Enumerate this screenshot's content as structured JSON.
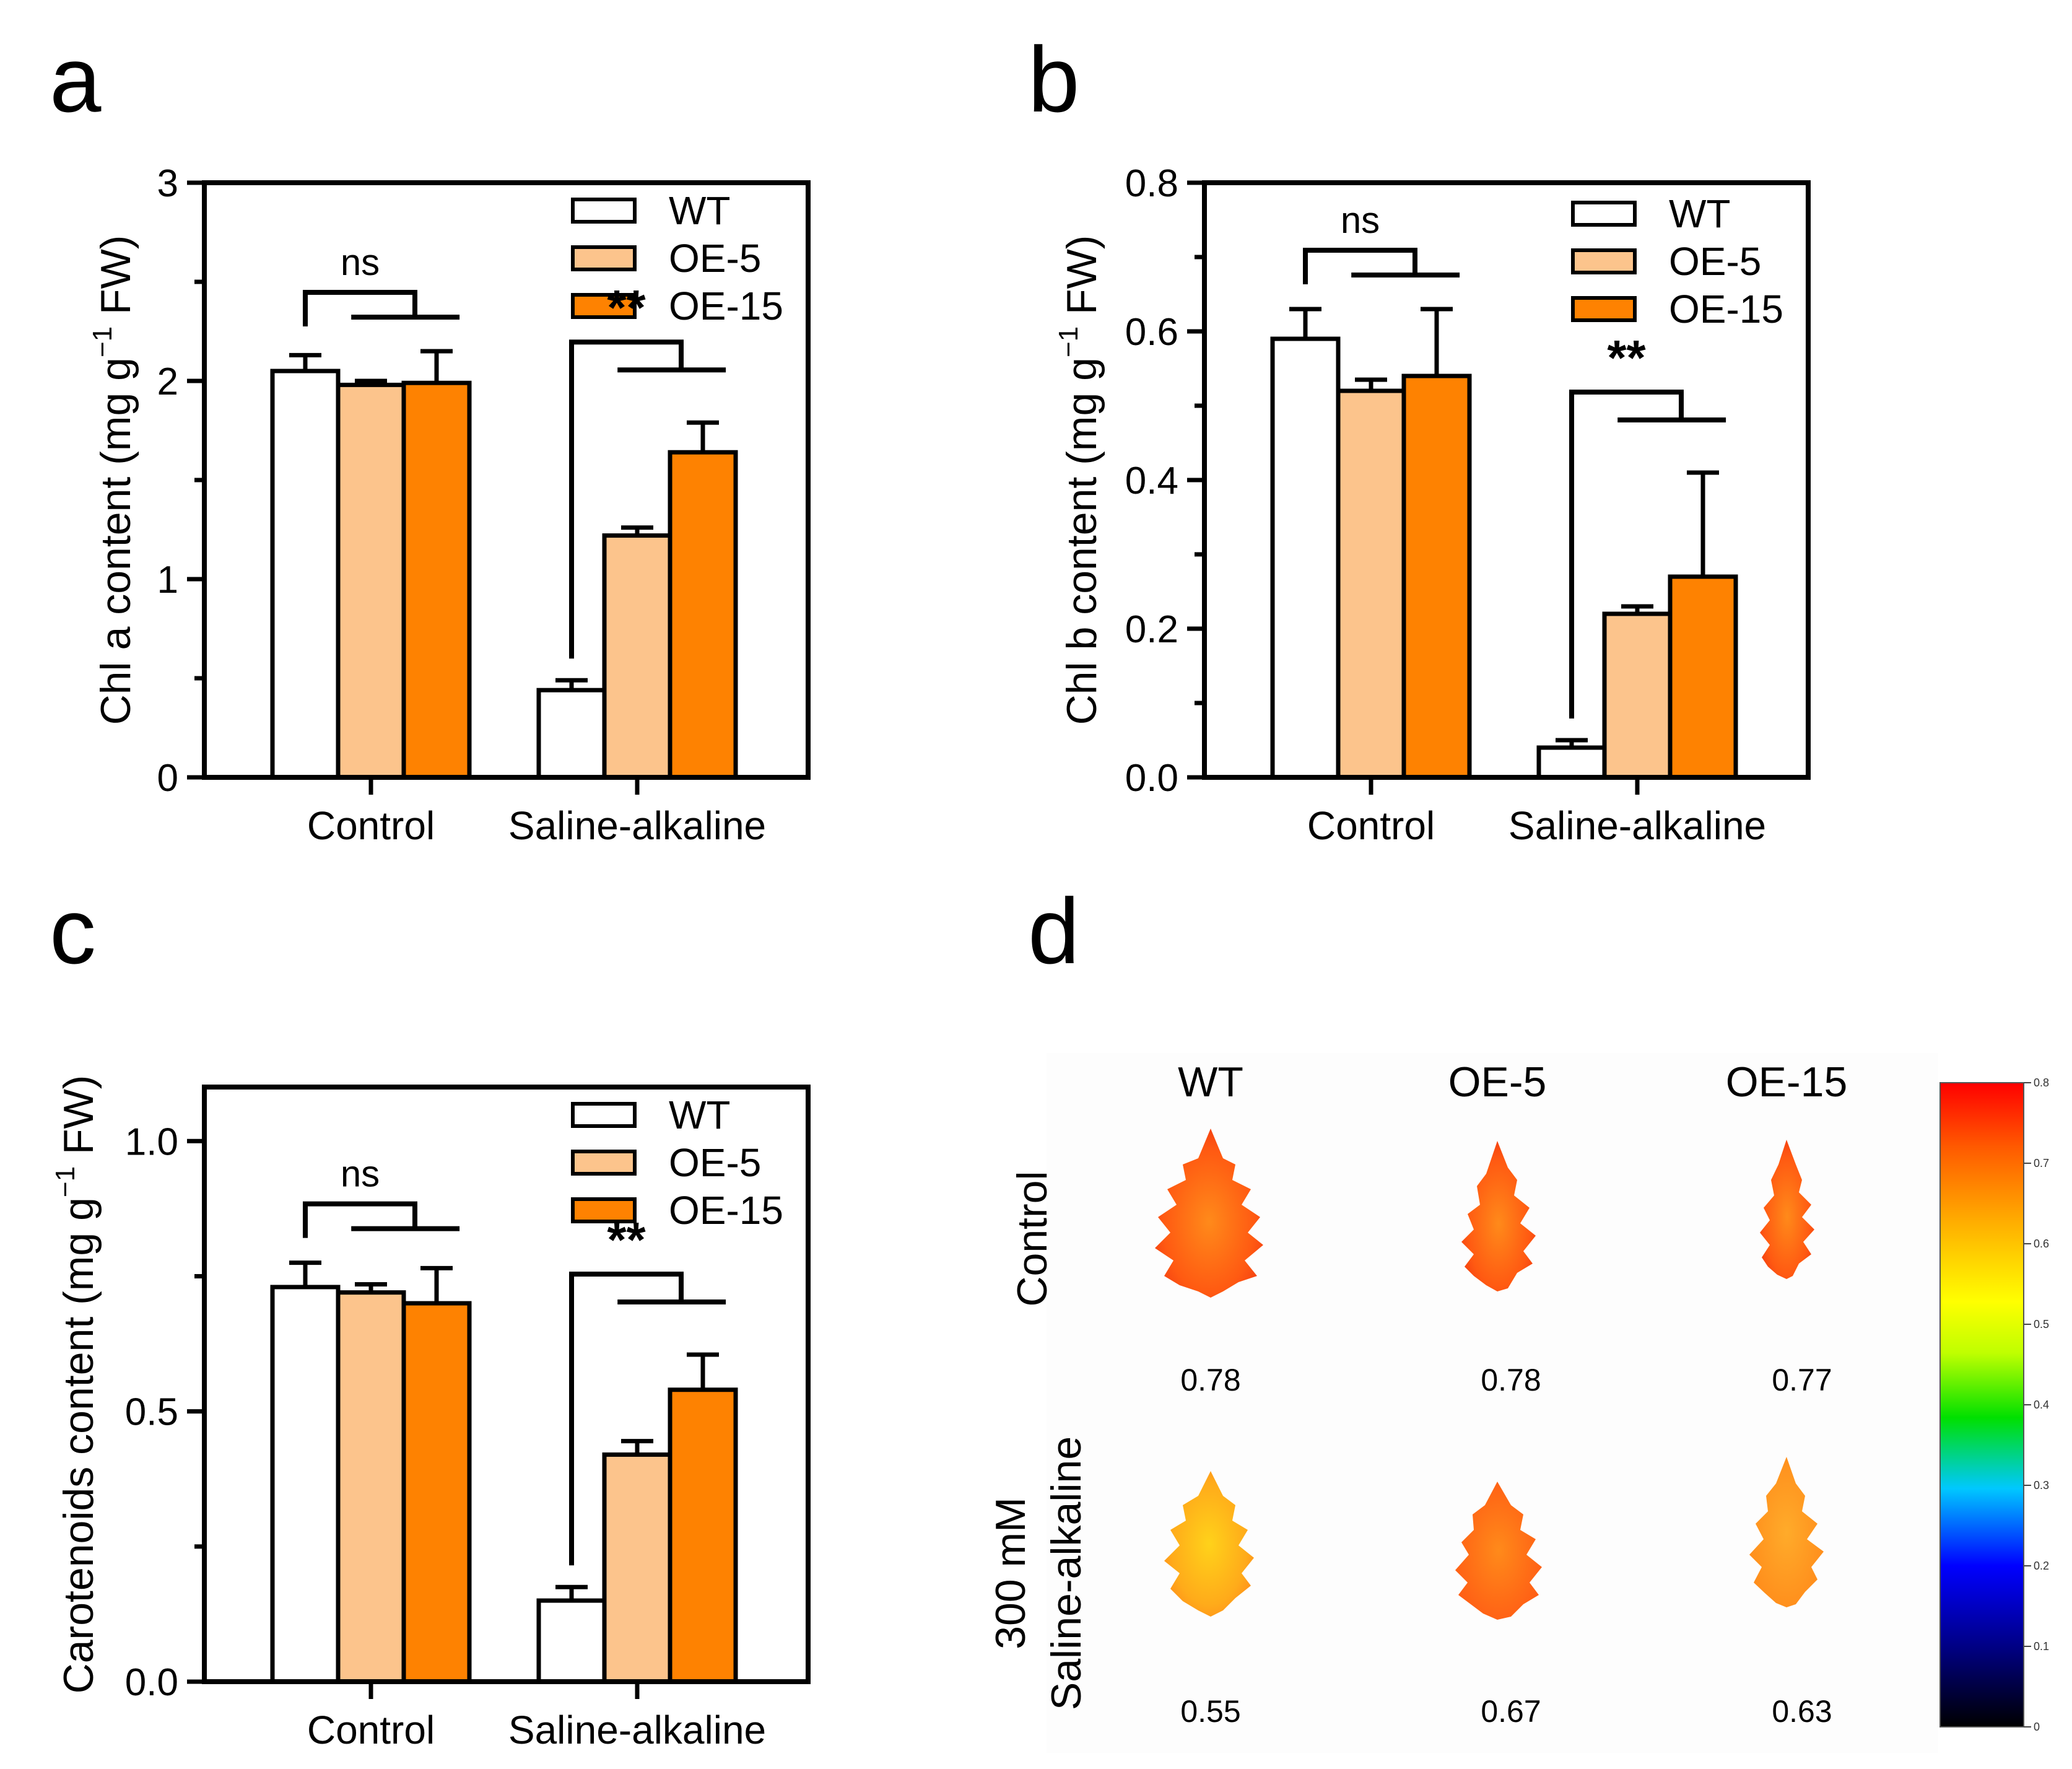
{
  "panels": [
    {
      "letter": "a",
      "chart_data": {
        "type": "bar",
        "ylabel": "Chl a content (mg g",
        "ylabel_sup": "−1",
        "ylabel_tail": " FW)",
        "ylim": [
          0,
          3
        ],
        "yticks": [
          "0",
          "1",
          "2",
          "3"
        ],
        "ytick_values": [
          0,
          1,
          2,
          3
        ],
        "categories": [
          "Control",
          "Saline-alkaline"
        ],
        "series": [
          {
            "name": "WT",
            "values": [
              2.05,
              0.44
            ],
            "errors": [
              0.08,
              0.05
            ]
          },
          {
            "name": "OE-5",
            "values": [
              1.98,
              1.22
            ],
            "errors": [
              0.02,
              0.04
            ]
          },
          {
            "name": "OE-15",
            "values": [
              1.99,
              1.64
            ],
            "errors": [
              0.16,
              0.15
            ]
          }
        ],
        "significance": [
          "ns",
          "**"
        ],
        "legend_position": "top-right"
      }
    },
    {
      "letter": "b",
      "chart_data": {
        "type": "bar",
        "ylabel": "Chl b content (mg g",
        "ylabel_sup": "−1",
        "ylabel_tail": " FW)",
        "ylim": [
          0,
          0.8
        ],
        "yticks": [
          "0.0",
          "0.2",
          "0.4",
          "0.6",
          "0.8"
        ],
        "ytick_values": [
          0,
          0.2,
          0.4,
          0.6,
          0.8
        ],
        "categories": [
          "Control",
          "Saline-alkaline"
        ],
        "series": [
          {
            "name": "WT",
            "values": [
              0.59,
              0.04
            ],
            "errors": [
              0.04,
              0.01
            ]
          },
          {
            "name": "OE-5",
            "values": [
              0.52,
              0.22
            ],
            "errors": [
              0.015,
              0.01
            ]
          },
          {
            "name": "OE-15",
            "values": [
              0.54,
              0.27
            ],
            "errors": [
              0.09,
              0.14
            ]
          }
        ],
        "significance": [
          "ns",
          "**"
        ],
        "legend_position": "top-right"
      }
    },
    {
      "letter": "c",
      "chart_data": {
        "type": "bar",
        "ylabel": "Carotenoids content (mg g",
        "ylabel_sup": "−1",
        "ylabel_tail": " FW)",
        "ylim": [
          0,
          1.1
        ],
        "yticks": [
          "0.0",
          "0.5",
          "1.0"
        ],
        "ytick_values": [
          0,
          0.5,
          1.0
        ],
        "categories": [
          "Control",
          "Saline-alkaline"
        ],
        "series": [
          {
            "name": "WT",
            "values": [
              0.73,
              0.15
            ],
            "errors": [
              0.045,
              0.025
            ]
          },
          {
            "name": "OE-5",
            "values": [
              0.72,
              0.42
            ],
            "errors": [
              0.015,
              0.025
            ]
          },
          {
            "name": "OE-15",
            "values": [
              0.7,
              0.54
            ],
            "errors": [
              0.065,
              0.065
            ]
          }
        ],
        "significance": [
          "ns",
          "**"
        ],
        "legend_position": "top-right"
      }
    }
  ],
  "colors": {
    "WT": "#ffffff",
    "OE-5": "#fcc48c",
    "OE-15": "#fe8201"
  },
  "panel_d": {
    "letter": "d",
    "columns": [
      "WT",
      "OE-5",
      "OE-15"
    ],
    "rows": [
      {
        "label": "Control",
        "values": [
          "0.78",
          "0.78",
          "0.77"
        ]
      },
      {
        "label_line1": "300 mM",
        "label_line2": "Saline-alkaline",
        "values": [
          "0.55",
          "0.67",
          "0.63"
        ]
      }
    ],
    "colorbar_ticks": [
      "0.8",
      "0.7",
      "0.6",
      "0.5",
      "0.4",
      "0.3",
      "0.2",
      "0.1",
      "0"
    ]
  }
}
